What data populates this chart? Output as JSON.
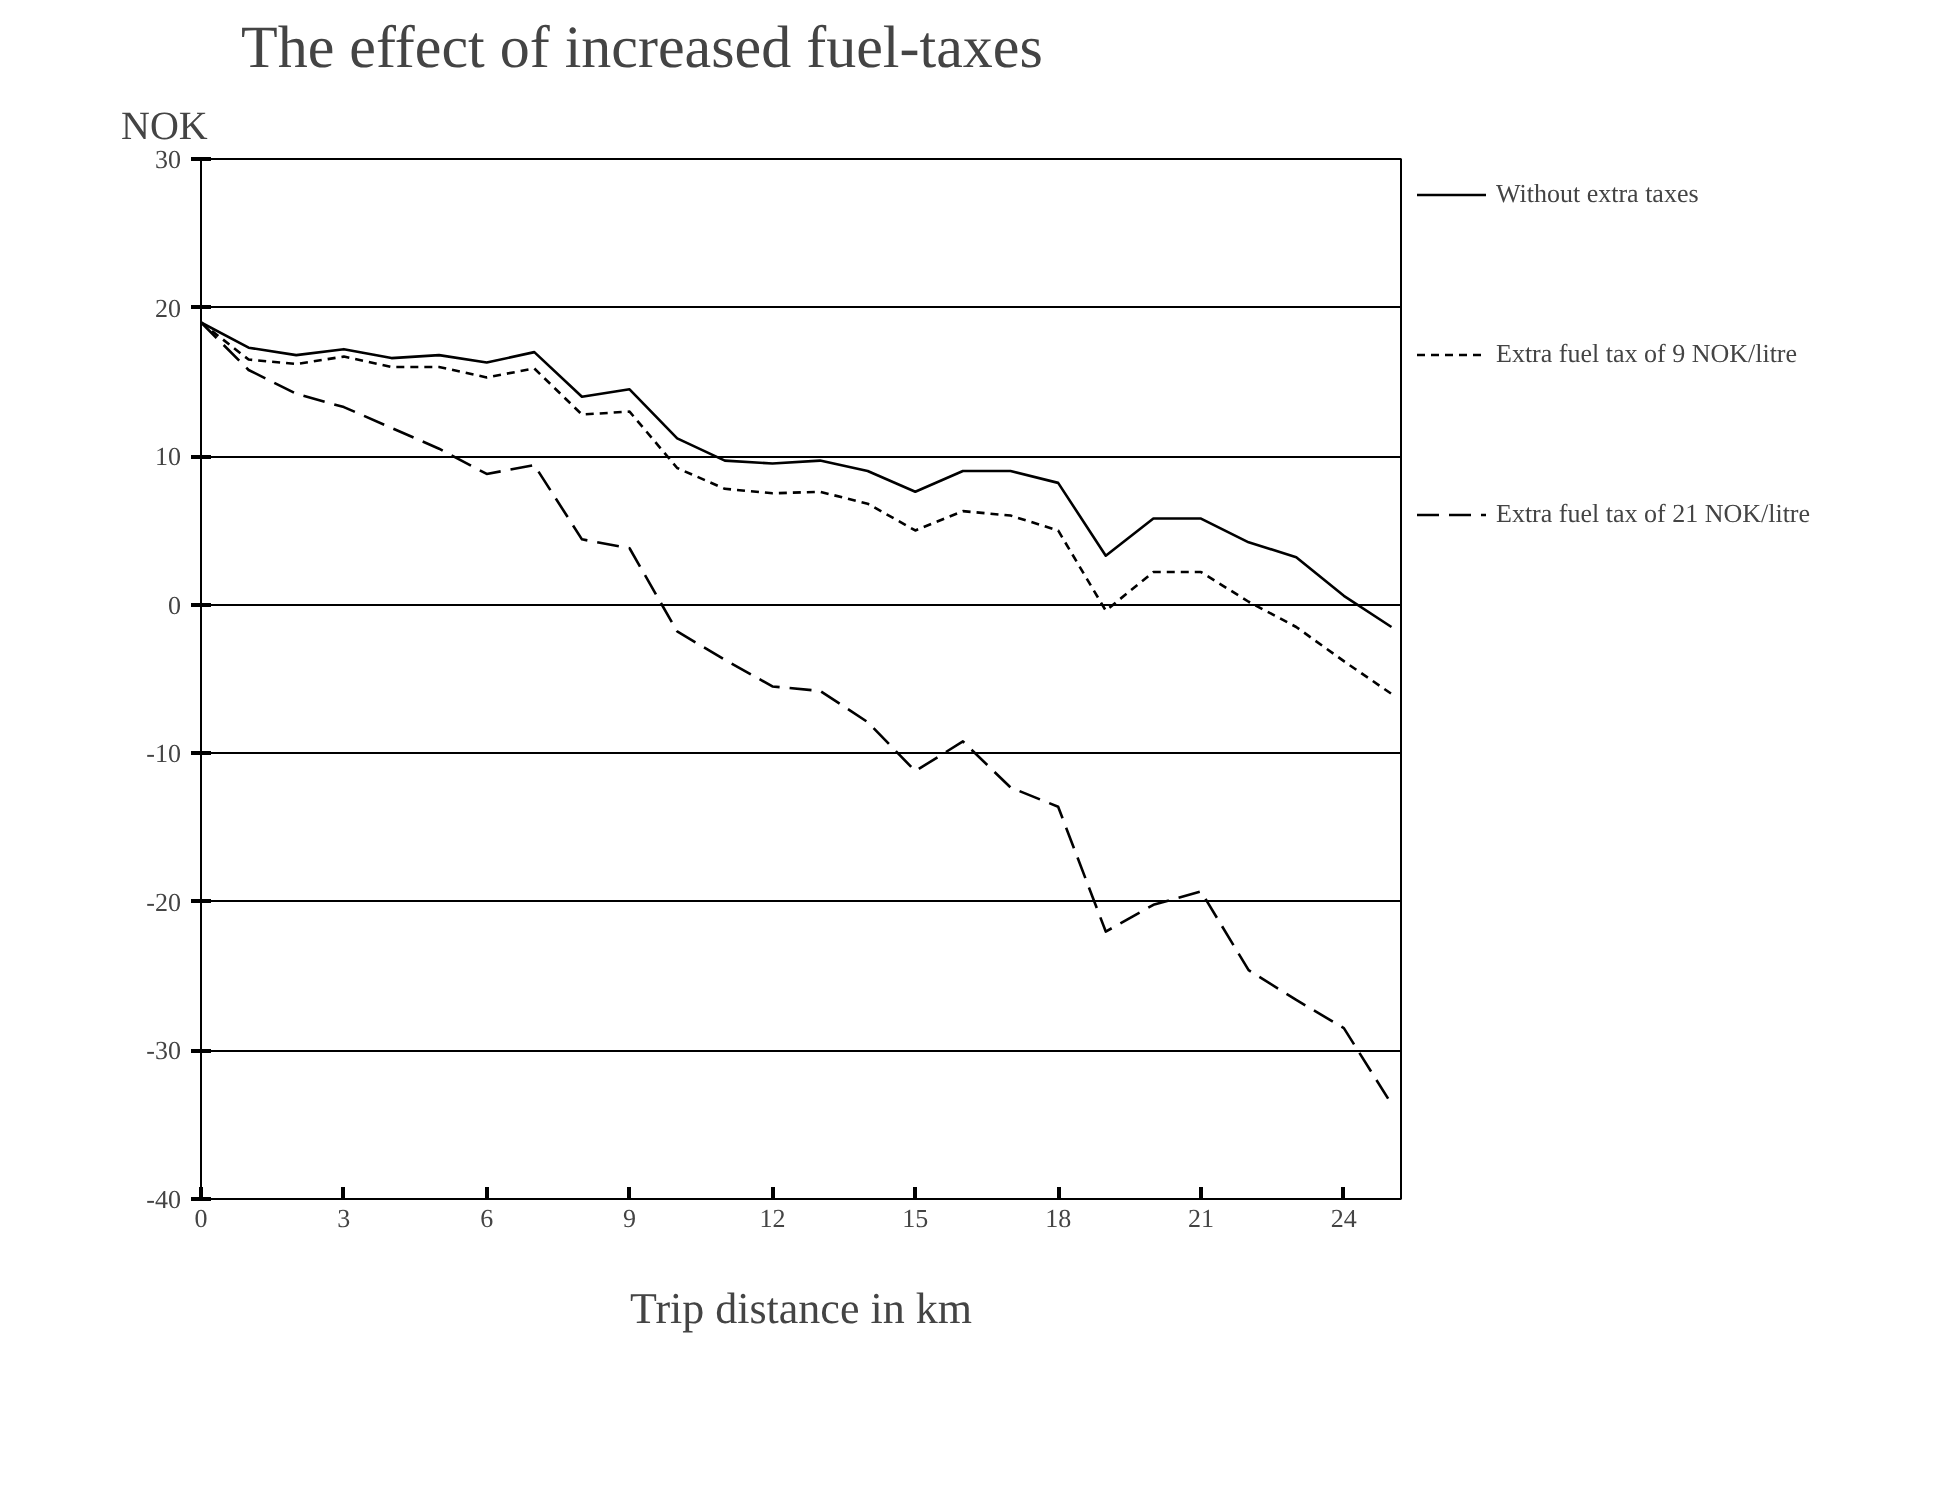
{
  "chart_data": {
    "type": "line",
    "title": "The effect of increased fuel-taxes",
    "xlabel": "Trip distance in km",
    "ylabel": "NOK",
    "x": [
      0,
      1,
      2,
      3,
      4,
      5,
      6,
      7,
      8,
      9,
      10,
      11,
      12,
      13,
      14,
      15,
      16,
      17,
      18,
      19,
      20,
      21,
      22,
      23,
      24,
      25
    ],
    "series": [
      {
        "name": "Without extra taxes",
        "color": "#000000",
        "line_style": "solid",
        "values": [
          19,
          17.3,
          16.8,
          17.2,
          16.6,
          16.8,
          16.3,
          17,
          14,
          14.5,
          11.2,
          9.7,
          9.5,
          9.7,
          9,
          7.6,
          9,
          9,
          8.2,
          3.3,
          5.8,
          5.8,
          4.2,
          3.2,
          0.6,
          -1.5
        ]
      },
      {
        "name": "Extra fuel tax of 9 NOK/litre",
        "color": "#000000",
        "line_style": "dotted",
        "values": [
          19,
          16.5,
          16.2,
          16.7,
          16,
          16,
          15.3,
          15.9,
          12.8,
          13,
          9.2,
          7.8,
          7.5,
          7.6,
          6.8,
          5,
          6.3,
          6,
          5,
          -0.4,
          2.2,
          2.2,
          0.2,
          -1.5,
          -3.8,
          -6
        ]
      },
      {
        "name": "Extra fuel tax of 21 NOK/litre",
        "color": "#000000",
        "line_style": "dashed",
        "values": [
          19,
          15.8,
          14.2,
          13.3,
          11.9,
          10.5,
          8.8,
          9.4,
          4.4,
          3.8,
          -1.8,
          -3.7,
          -5.5,
          -5.8,
          -7.9,
          -11.2,
          -9.2,
          -12.3,
          -13.6,
          -22,
          -20.2,
          -19.3,
          -24.6,
          -26.6,
          -28.5,
          -33.6
        ]
      }
    ],
    "xlim": [
      0,
      25.2
    ],
    "ylim": [
      -40,
      30
    ],
    "xticks": [
      0,
      3,
      6,
      9,
      12,
      15,
      18,
      21,
      24
    ],
    "yticks": [
      -40,
      -30,
      -20,
      -10,
      0,
      10,
      20,
      30
    ],
    "grid": "y",
    "legend": "right",
    "marker": "none"
  }
}
